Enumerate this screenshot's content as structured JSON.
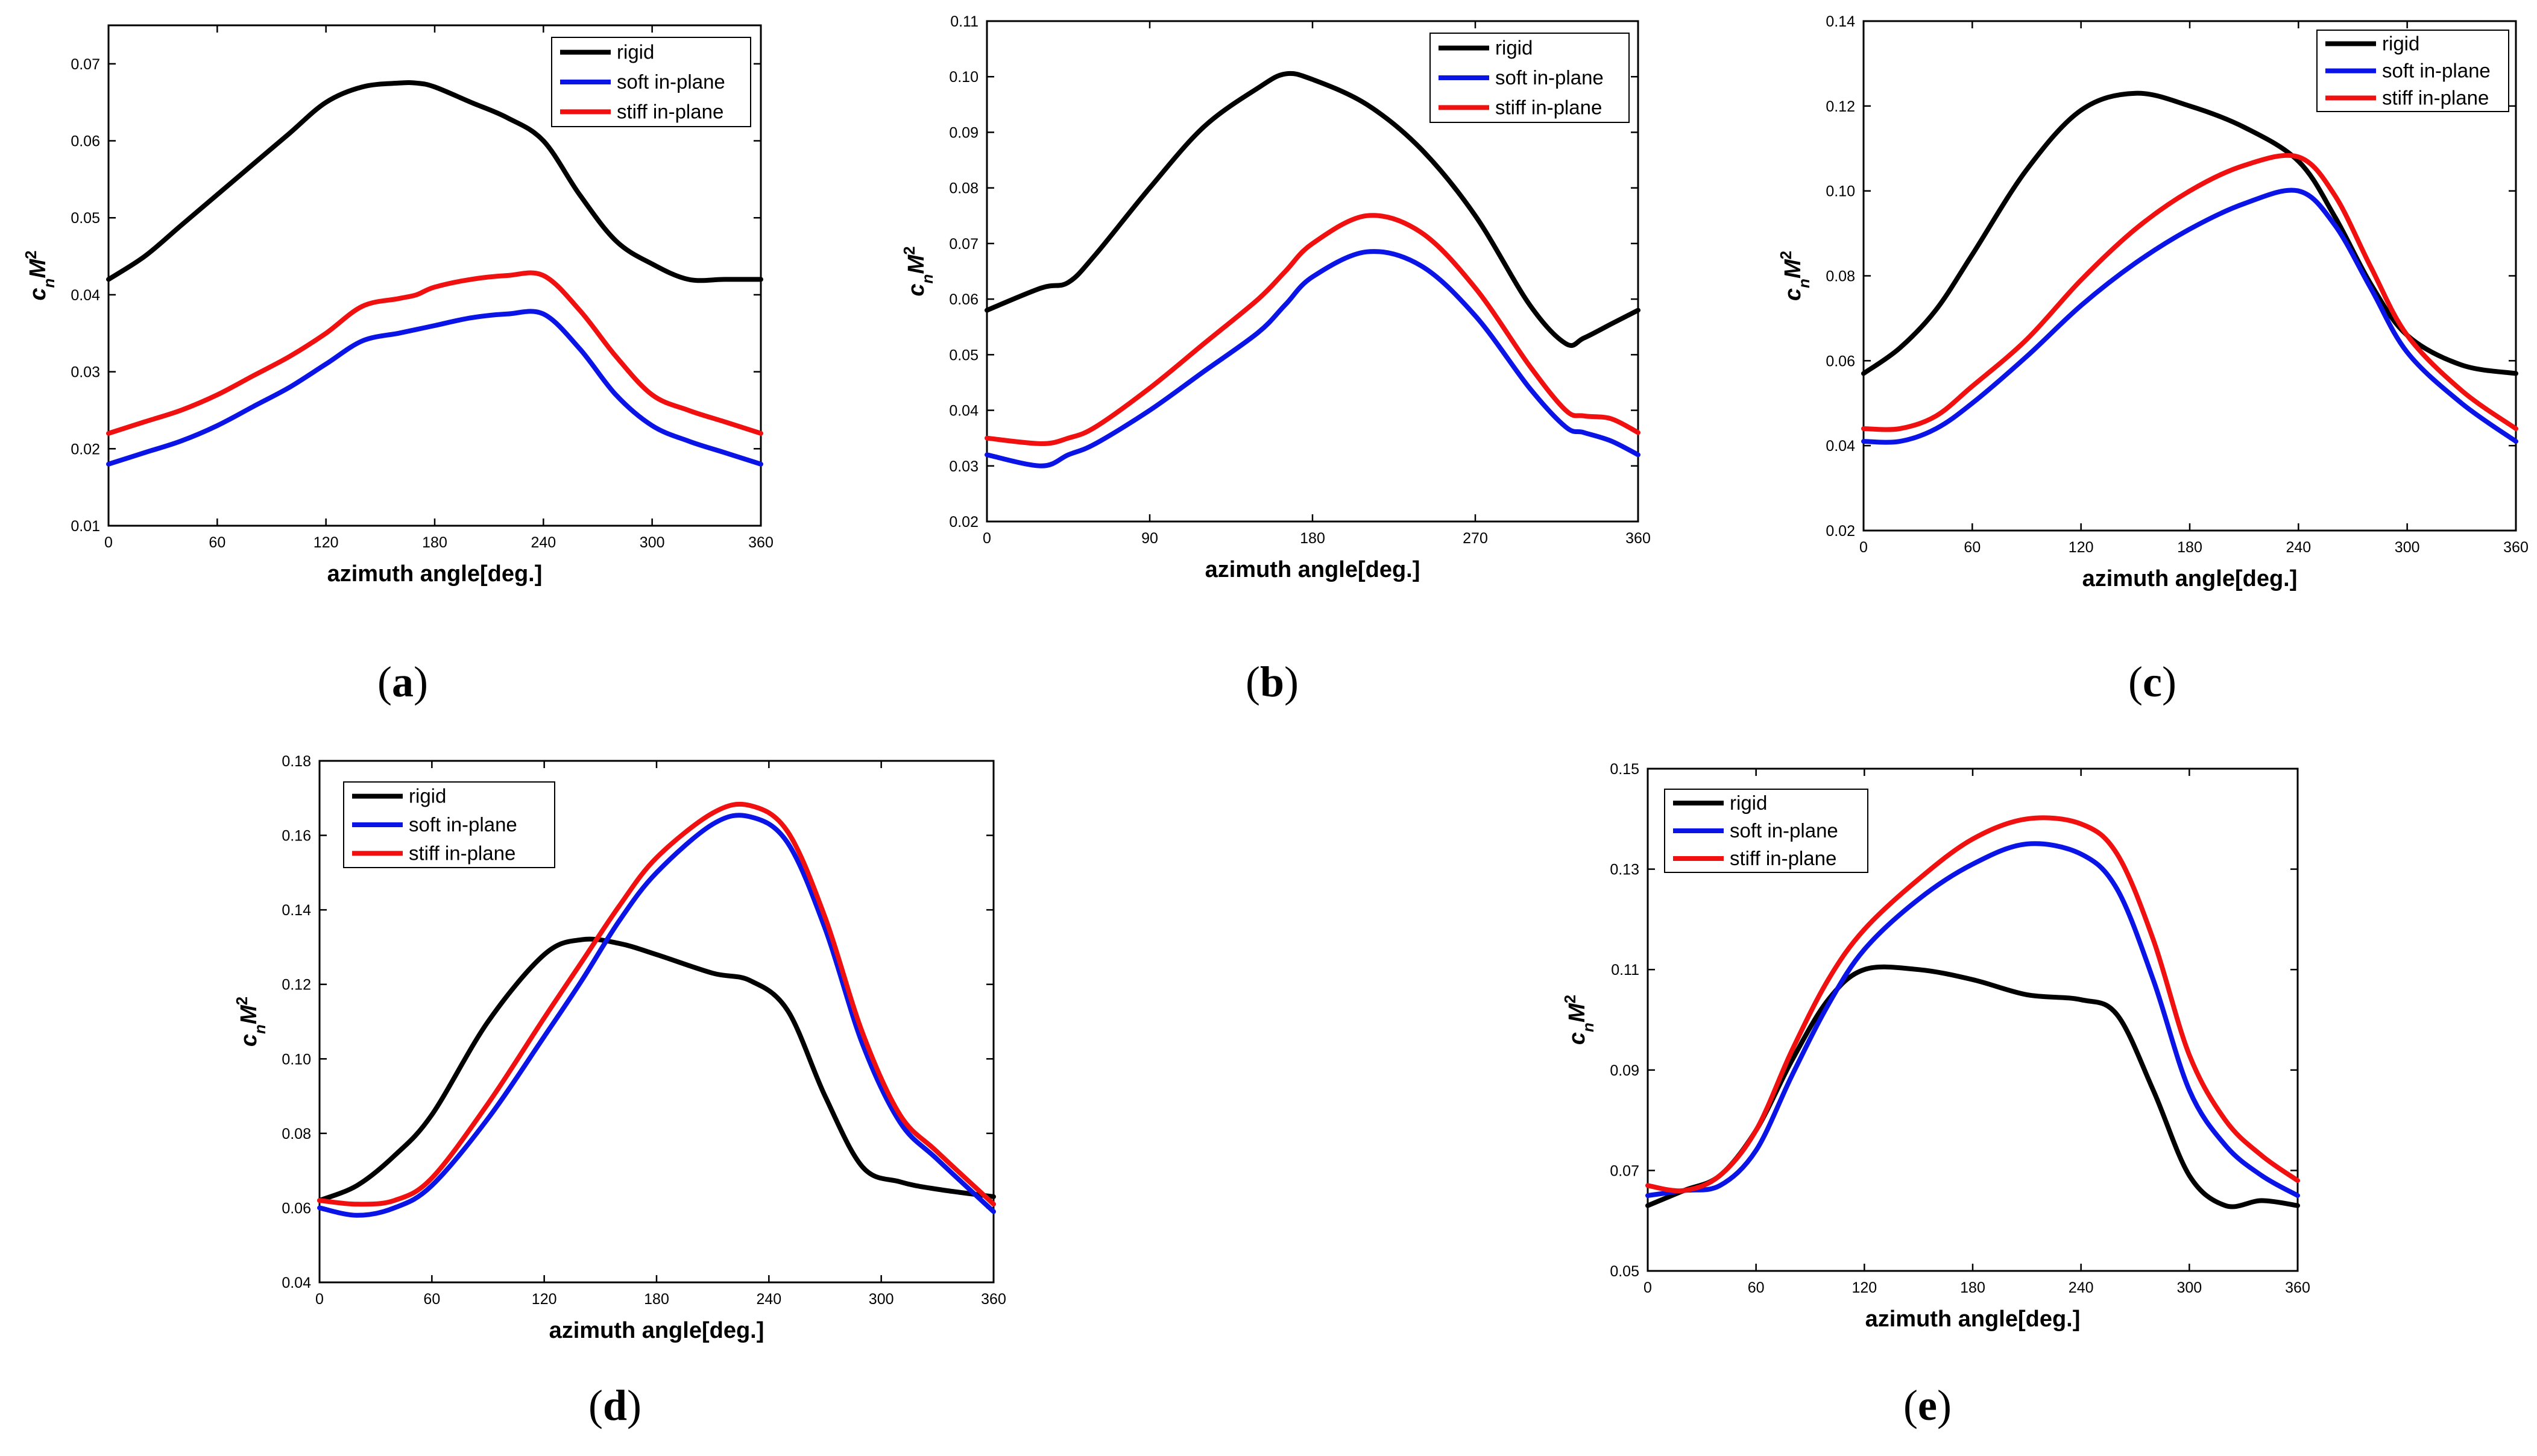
{
  "figure": {
    "legend_entries": [
      {
        "name": "rigid",
        "color": "#000000"
      },
      {
        "name": "soft in-plane",
        "color": "#0a14e6"
      },
      {
        "name": "stiff in-plane",
        "color": "#f01010"
      }
    ]
  },
  "chart_data": [
    {
      "panel": "a",
      "type": "line",
      "xlabel": "azimuth angle[deg.]",
      "ylabel": "c_n M^2",
      "xlim": [
        0,
        360
      ],
      "ylim": [
        0.01,
        0.075
      ],
      "xticks": [
        0,
        60,
        120,
        180,
        240,
        300,
        360
      ],
      "xtick_labels": [
        "0",
        "60",
        "120",
        "180",
        "240",
        "300",
        "360"
      ],
      "yticks": [
        0.01,
        0.02,
        0.03,
        0.04,
        0.05,
        0.06,
        0.07
      ],
      "ytick_labels": [
        "0.01",
        "0.02",
        "0.03",
        "0.04",
        "0.05",
        "0.06",
        "0.07"
      ],
      "x": [
        0,
        20,
        40,
        60,
        80,
        100,
        120,
        140,
        160,
        170,
        180,
        200,
        220,
        240,
        260,
        280,
        300,
        320,
        340,
        360
      ],
      "series": [
        {
          "name": "rigid",
          "values": [
            0.042,
            0.045,
            0.049,
            0.053,
            0.057,
            0.061,
            0.065,
            0.067,
            0.0675,
            0.0675,
            0.067,
            0.065,
            0.063,
            0.06,
            0.053,
            0.047,
            0.044,
            0.042,
            0.042,
            0.042
          ]
        },
        {
          "name": "soft in-plane",
          "values": [
            0.018,
            0.0195,
            0.021,
            0.023,
            0.0255,
            0.028,
            0.031,
            0.034,
            0.035,
            0.0355,
            0.036,
            0.037,
            0.0375,
            0.0375,
            0.033,
            0.027,
            0.023,
            0.021,
            0.0195,
            0.018
          ]
        },
        {
          "name": "stiff in-plane",
          "values": [
            0.022,
            0.0235,
            0.025,
            0.027,
            0.0295,
            0.032,
            0.035,
            0.0385,
            0.0395,
            0.04,
            0.041,
            0.042,
            0.0425,
            0.0425,
            0.038,
            0.032,
            0.027,
            0.025,
            0.0235,
            0.022
          ]
        }
      ]
    },
    {
      "panel": "b",
      "type": "line",
      "xlabel": "azimuth angle[deg.]",
      "ylabel": "c_n M^2",
      "xlim": [
        0,
        360
      ],
      "ylim": [
        0.02,
        0.11
      ],
      "xticks": [
        0,
        90,
        180,
        270,
        360
      ],
      "xtick_labels": [
        "0",
        "90",
        "180",
        "270",
        "360"
      ],
      "yticks": [
        0.02,
        0.03,
        0.04,
        0.05,
        0.06,
        0.07,
        0.08,
        0.09,
        0.1,
        0.11
      ],
      "ytick_labels": [
        "0.02",
        "0.03",
        "0.04",
        "0.05",
        "0.06",
        "0.07",
        "0.08",
        "0.09",
        "0.10",
        "0.11"
      ],
      "x": [
        0,
        30,
        45,
        60,
        90,
        120,
        150,
        165,
        180,
        210,
        240,
        270,
        300,
        320,
        330,
        345,
        360
      ],
      "series": [
        {
          "name": "rigid",
          "values": [
            0.058,
            0.062,
            0.063,
            0.068,
            0.08,
            0.091,
            0.098,
            0.1005,
            0.0995,
            0.095,
            0.087,
            0.075,
            0.059,
            0.052,
            0.053,
            0.0555,
            0.058
          ]
        },
        {
          "name": "soft in-plane",
          "values": [
            0.032,
            0.03,
            0.032,
            0.034,
            0.04,
            0.047,
            0.054,
            0.059,
            0.064,
            0.0685,
            0.066,
            0.057,
            0.044,
            0.037,
            0.036,
            0.0345,
            0.032
          ]
        },
        {
          "name": "stiff in-plane",
          "values": [
            0.035,
            0.034,
            0.035,
            0.037,
            0.044,
            0.052,
            0.06,
            0.065,
            0.07,
            0.075,
            0.072,
            0.062,
            0.048,
            0.04,
            0.039,
            0.0385,
            0.036
          ]
        }
      ]
    },
    {
      "panel": "c",
      "type": "line",
      "xlabel": "azimuth angle[deg.]",
      "ylabel": "c_n M^2",
      "xlim": [
        0,
        360
      ],
      "ylim": [
        0.02,
        0.14
      ],
      "xticks": [
        0,
        60,
        120,
        180,
        240,
        300,
        360
      ],
      "xtick_labels": [
        "0",
        "60",
        "120",
        "180",
        "240",
        "300",
        "360"
      ],
      "yticks": [
        0.02,
        0.04,
        0.06,
        0.08,
        0.1,
        0.12,
        0.14
      ],
      "ytick_labels": [
        "0.02",
        "0.04",
        "0.06",
        "0.08",
        "0.10",
        "0.12",
        "0.14"
      ],
      "x": [
        0,
        20,
        40,
        60,
        90,
        120,
        150,
        180,
        210,
        240,
        260,
        280,
        300,
        330,
        360
      ],
      "series": [
        {
          "name": "rigid",
          "values": [
            0.057,
            0.063,
            0.072,
            0.085,
            0.105,
            0.119,
            0.123,
            0.12,
            0.115,
            0.107,
            0.094,
            0.078,
            0.066,
            0.059,
            0.057
          ]
        },
        {
          "name": "soft in-plane",
          "values": [
            0.041,
            0.041,
            0.044,
            0.05,
            0.061,
            0.073,
            0.083,
            0.091,
            0.097,
            0.1,
            0.092,
            0.077,
            0.062,
            0.05,
            0.041
          ]
        },
        {
          "name": "stiff in-plane",
          "values": [
            0.044,
            0.044,
            0.047,
            0.054,
            0.065,
            0.079,
            0.091,
            0.1,
            0.106,
            0.108,
            0.099,
            0.082,
            0.066,
            0.053,
            0.044
          ]
        }
      ]
    },
    {
      "panel": "d",
      "type": "line",
      "xlabel": "azimuth angle[deg.]",
      "ylabel": "c_n M^2",
      "xlim": [
        0,
        360
      ],
      "ylim": [
        0.04,
        0.18
      ],
      "xticks": [
        0,
        60,
        120,
        180,
        240,
        300,
        360
      ],
      "xtick_labels": [
        "0",
        "60",
        "120",
        "180",
        "240",
        "300",
        "360"
      ],
      "yticks": [
        0.04,
        0.06,
        0.08,
        0.1,
        0.12,
        0.14,
        0.16,
        0.18
      ],
      "ytick_labels": [
        "0.04",
        "0.06",
        "0.08",
        "0.10",
        "0.12",
        "0.14",
        "0.16",
        "0.18"
      ],
      "x": [
        0,
        20,
        40,
        60,
        90,
        120,
        140,
        160,
        180,
        210,
        230,
        250,
        270,
        290,
        310,
        330,
        360
      ],
      "series": [
        {
          "name": "rigid",
          "values": [
            0.062,
            0.066,
            0.074,
            0.085,
            0.11,
            0.128,
            0.132,
            0.131,
            0.128,
            0.123,
            0.121,
            0.113,
            0.09,
            0.071,
            0.067,
            0.065,
            0.063
          ]
        },
        {
          "name": "soft in-plane",
          "values": [
            0.06,
            0.058,
            0.06,
            0.066,
            0.084,
            0.106,
            0.121,
            0.137,
            0.15,
            0.163,
            0.165,
            0.158,
            0.135,
            0.104,
            0.083,
            0.073,
            0.059
          ]
        },
        {
          "name": "stiff in-plane",
          "values": [
            0.062,
            0.061,
            0.062,
            0.068,
            0.088,
            0.111,
            0.126,
            0.141,
            0.154,
            0.166,
            0.168,
            0.161,
            0.138,
            0.107,
            0.085,
            0.075,
            0.061
          ]
        }
      ]
    },
    {
      "panel": "e",
      "type": "line",
      "xlabel": "azimuth angle[deg.]",
      "ylabel": "c_n M^2",
      "xlim": [
        0,
        360
      ],
      "ylim": [
        0.05,
        0.15
      ],
      "xticks": [
        0,
        60,
        120,
        180,
        240,
        300,
        360
      ],
      "xtick_labels": [
        "0",
        "60",
        "120",
        "180",
        "240",
        "300",
        "360"
      ],
      "yticks": [
        0.05,
        0.07,
        0.09,
        0.11,
        0.13,
        0.15
      ],
      "ytick_labels": [
        "0.05",
        "0.07",
        "0.09",
        "0.11",
        "0.13",
        "0.15"
      ],
      "x": [
        0,
        20,
        40,
        60,
        80,
        100,
        120,
        150,
        180,
        210,
        240,
        260,
        280,
        300,
        320,
        340,
        360
      ],
      "series": [
        {
          "name": "rigid",
          "values": [
            0.063,
            0.066,
            0.069,
            0.078,
            0.092,
            0.104,
            0.11,
            0.11,
            0.108,
            0.105,
            0.104,
            0.101,
            0.086,
            0.069,
            0.063,
            0.064,
            0.063
          ]
        },
        {
          "name": "soft in-plane",
          "values": [
            0.065,
            0.066,
            0.067,
            0.074,
            0.089,
            0.103,
            0.114,
            0.124,
            0.131,
            0.135,
            0.133,
            0.126,
            0.108,
            0.086,
            0.075,
            0.069,
            0.065
          ]
        },
        {
          "name": "stiff in-plane",
          "values": [
            0.067,
            0.066,
            0.069,
            0.078,
            0.094,
            0.108,
            0.118,
            0.128,
            0.136,
            0.14,
            0.139,
            0.133,
            0.116,
            0.093,
            0.08,
            0.073,
            0.068
          ]
        }
      ]
    }
  ]
}
